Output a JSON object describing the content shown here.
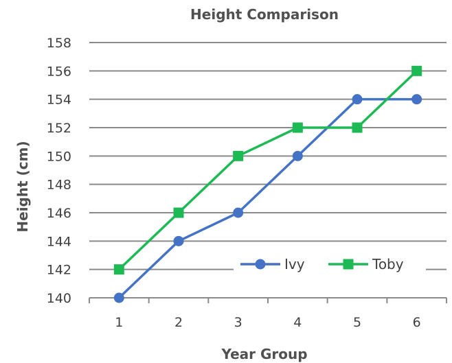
{
  "chart_data": {
    "type": "line",
    "title": "Height Comparison",
    "xlabel": "Year Group",
    "ylabel": "Height (cm)",
    "x": [
      1,
      2,
      3,
      4,
      5,
      6
    ],
    "ylim": [
      140,
      158
    ],
    "yticks": [
      140,
      142,
      144,
      146,
      148,
      150,
      152,
      154,
      156,
      158
    ],
    "grid": true,
    "legend": "bottom-right",
    "series": [
      {
        "name": "Ivy",
        "values": [
          140,
          144,
          146,
          150,
          154,
          154
        ],
        "color": "#4472C4",
        "marker": "circle"
      },
      {
        "name": "Toby",
        "values": [
          142,
          146,
          150,
          152,
          152,
          156
        ],
        "color": "#1DB954",
        "marker": "square"
      }
    ]
  }
}
